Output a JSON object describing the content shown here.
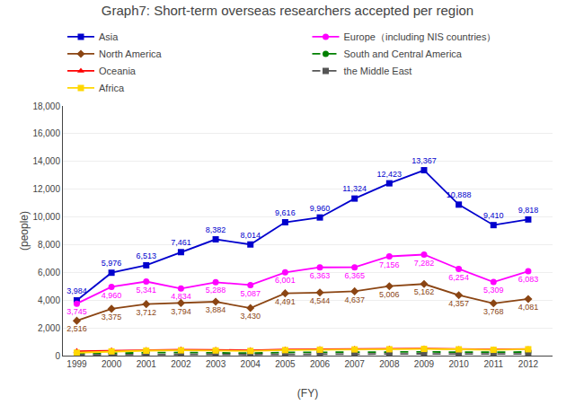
{
  "chart_data": {
    "type": "line",
    "title": "Graph7: Short-term overseas researchers accepted per region",
    "x_label": "(FY)",
    "y_label": "(people)",
    "x": [
      1999,
      2000,
      2001,
      2002,
      2003,
      2004,
      2005,
      2006,
      2007,
      2008,
      2009,
      2010,
      2011,
      2012
    ],
    "series": [
      {
        "name": "Asia",
        "color": "#0000CD",
        "marker": "square",
        "line_style": "solid",
        "data_labels": true,
        "values": [
          3984,
          5976,
          6513,
          7461,
          8382,
          8014,
          9616,
          9960,
          11324,
          12423,
          13367,
          10888,
          9410,
          9818
        ],
        "value_labels": [
          "3,984",
          "5,976",
          "6,513",
          "7,461",
          "8,382",
          "8,014",
          "9,616",
          "9,960",
          "11,324",
          "12,423",
          "13,367",
          "10,888",
          "9,410",
          "9,818"
        ]
      },
      {
        "name": "Europe（including NIS countries）",
        "color": "#FF00FF",
        "marker": "circle",
        "line_style": "solid",
        "data_labels": true,
        "values": [
          3745,
          4960,
          5341,
          4834,
          5288,
          5087,
          6001,
          6363,
          6365,
          7156,
          7282,
          6254,
          5309,
          6083
        ],
        "value_labels": [
          "3,745",
          "4,960",
          "5,341",
          "4,834",
          "5,288",
          "5,087",
          "6,001",
          "6,363",
          "6,365",
          "7,156",
          "7,282",
          "6,254",
          "5,309",
          "6,083"
        ]
      },
      {
        "name": "North America",
        "color": "#8B4513",
        "marker": "diamond",
        "line_style": "solid",
        "data_labels": true,
        "values": [
          2516,
          3375,
          3712,
          3794,
          3884,
          3430,
          4491,
          4544,
          4637,
          5006,
          5162,
          4357,
          3768,
          4081
        ],
        "value_labels": [
          "2,516",
          "3,375",
          "3,712",
          "3,794",
          "3,884",
          "3,430",
          "4,491",
          "4,544",
          "4,637",
          "5,006",
          "5,162",
          "4,357",
          "3,768",
          "4,081"
        ]
      },
      {
        "name": "South and Central America",
        "color": "#008000",
        "marker": "circle",
        "line_style": "dashed",
        "values": [
          130,
          185,
          210,
          225,
          205,
          175,
          225,
          240,
          250,
          260,
          270,
          245,
          230,
          260
        ]
      },
      {
        "name": "Oceania",
        "color": "#FF0000",
        "marker": "triangle",
        "line_style": "solid",
        "values": [
          320,
          370,
          410,
          430,
          415,
          385,
          440,
          465,
          480,
          495,
          510,
          475,
          440,
          475
        ]
      },
      {
        "name": "the Middle East",
        "color": "#555555",
        "marker": "square",
        "line_style": "dashed",
        "values": [
          55,
          70,
          85,
          95,
          90,
          80,
          100,
          110,
          115,
          125,
          130,
          115,
          105,
          120
        ]
      },
      {
        "name": "Africa",
        "color": "#FFD700",
        "marker": "square",
        "line_style": "solid",
        "values": [
          210,
          305,
          355,
          380,
          368,
          338,
          395,
          425,
          445,
          458,
          482,
          452,
          418,
          458
        ]
      }
    ],
    "xlim": [
      1998.6,
      2012.7
    ],
    "xticks": [
      1999,
      2000,
      2001,
      2002,
      2003,
      2004,
      2005,
      2006,
      2007,
      2008,
      2009,
      2010,
      2011,
      2012
    ],
    "ylim": [
      0,
      18000
    ],
    "yticks": [
      0,
      {
        "value": 2000,
        "label": "2,000"
      },
      {
        "value": 4000,
        "label": "4,000"
      },
      {
        "value": 6000,
        "label": "6,000"
      },
      {
        "value": 8000,
        "label": "8,000"
      },
      {
        "value": 10000,
        "label": "10,000"
      },
      {
        "value": 12000,
        "label": "12,000"
      },
      {
        "value": 14000,
        "label": "14,000"
      },
      {
        "value": 16000,
        "label": "16,000"
      },
      {
        "value": 18000,
        "label": "18,000"
      }
    ],
    "grid": "y",
    "legend": "top"
  }
}
